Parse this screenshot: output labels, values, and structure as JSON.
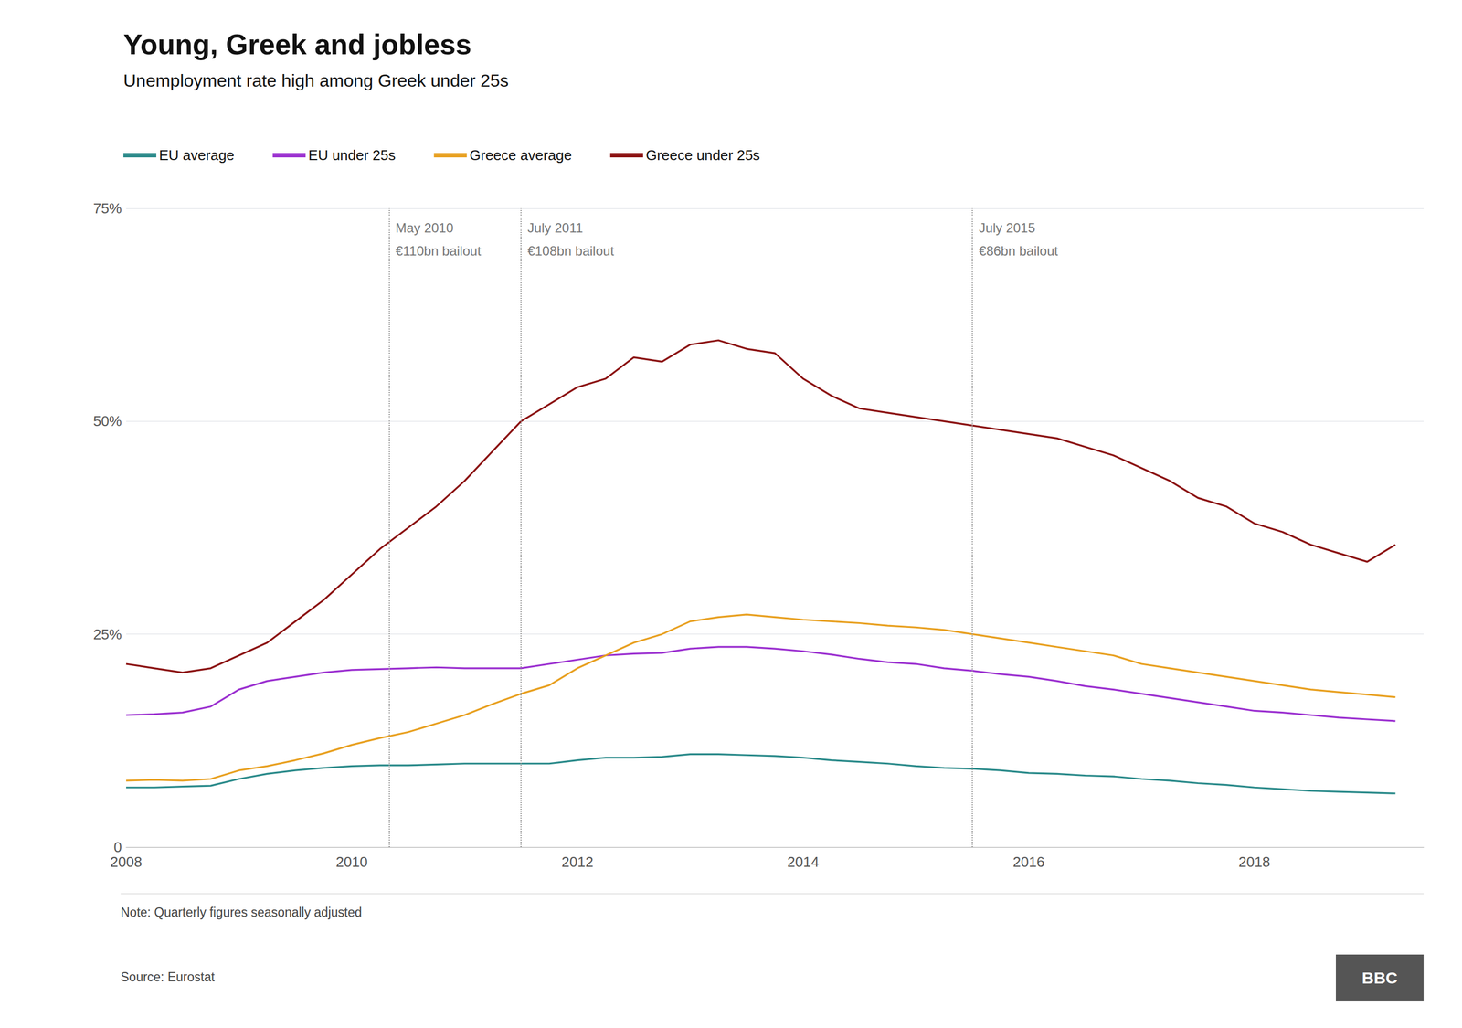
{
  "chart_data": {
    "type": "line",
    "title": "Young, Greek and jobless",
    "subtitle": "Unemployment rate high among Greek under 25s",
    "note": "Note: Quarterly figures seasonally adjusted",
    "source": "Source: Eurostat",
    "logo": "BBC",
    "x": [
      2008.0,
      2008.25,
      2008.5,
      2008.75,
      2009.0,
      2009.25,
      2009.5,
      2009.75,
      2010.0,
      2010.25,
      2010.5,
      2010.75,
      2011.0,
      2011.25,
      2011.5,
      2011.75,
      2012.0,
      2012.25,
      2012.5,
      2012.75,
      2013.0,
      2013.25,
      2013.5,
      2013.75,
      2014.0,
      2014.25,
      2014.5,
      2014.75,
      2015.0,
      2015.25,
      2015.5,
      2015.75,
      2016.0,
      2016.25,
      2016.5,
      2016.75,
      2017.0,
      2017.25,
      2017.5,
      2017.75,
      2018.0,
      2018.25,
      2018.5,
      2018.75,
      2019.0,
      2019.25
    ],
    "series": [
      {
        "name": "EU average",
        "color": "#2a8a8a",
        "values": [
          7.0,
          7.0,
          7.1,
          7.2,
          8.0,
          8.6,
          9.0,
          9.3,
          9.5,
          9.6,
          9.6,
          9.7,
          9.8,
          9.8,
          9.8,
          9.8,
          10.2,
          10.5,
          10.5,
          10.6,
          10.9,
          10.9,
          10.8,
          10.7,
          10.5,
          10.2,
          10.0,
          9.8,
          9.5,
          9.3,
          9.2,
          9.0,
          8.7,
          8.6,
          8.4,
          8.3,
          8.0,
          7.8,
          7.5,
          7.3,
          7.0,
          6.8,
          6.6,
          6.5,
          6.4,
          6.3
        ]
      },
      {
        "name": "EU under 25s",
        "color": "#9b30d0",
        "values": [
          15.5,
          15.6,
          15.8,
          16.5,
          18.5,
          19.5,
          20.0,
          20.5,
          20.8,
          20.9,
          21.0,
          21.1,
          21.0,
          21.0,
          21.0,
          21.5,
          22.0,
          22.5,
          22.7,
          22.8,
          23.3,
          23.5,
          23.5,
          23.3,
          23.0,
          22.6,
          22.1,
          21.7,
          21.5,
          21.0,
          20.7,
          20.3,
          20.0,
          19.5,
          18.9,
          18.5,
          18.0,
          17.5,
          17.0,
          16.5,
          16.0,
          15.8,
          15.5,
          15.2,
          15.0,
          14.8
        ]
      },
      {
        "name": "Greece average",
        "color": "#e8a020",
        "values": [
          7.8,
          7.9,
          7.8,
          8.0,
          9.0,
          9.5,
          10.2,
          11.0,
          12.0,
          12.8,
          13.5,
          14.5,
          15.5,
          16.8,
          18.0,
          19.0,
          21.0,
          22.5,
          24.0,
          25.0,
          26.5,
          27.0,
          27.3,
          27.0,
          26.7,
          26.5,
          26.3,
          26.0,
          25.8,
          25.5,
          25.0,
          24.5,
          24.0,
          23.5,
          23.0,
          22.5,
          21.5,
          21.0,
          20.5,
          20.0,
          19.5,
          19.0,
          18.5,
          18.2,
          17.9,
          17.6
        ]
      },
      {
        "name": "Greece under 25s",
        "color": "#8b1010",
        "values": [
          21.5,
          21.0,
          20.5,
          21.0,
          22.5,
          24.0,
          26.5,
          29.0,
          32.0,
          35.0,
          37.5,
          40.0,
          43.0,
          46.5,
          50.0,
          52.0,
          54.0,
          55.0,
          57.5,
          57.0,
          59.0,
          59.5,
          58.5,
          58.0,
          55.0,
          53.0,
          51.5,
          51.0,
          50.5,
          50.0,
          49.5,
          49.0,
          48.5,
          48.0,
          47.0,
          46.0,
          44.5,
          43.0,
          41.0,
          40.0,
          38.0,
          37.0,
          35.5,
          34.5,
          33.5,
          35.5
        ]
      }
    ],
    "annotations": [
      {
        "x": 2010.33,
        "text": [
          "May 2010",
          "€110bn bailout"
        ]
      },
      {
        "x": 2011.5,
        "text": [
          "July 2011",
          "€108bn bailout"
        ]
      },
      {
        "x": 2015.5,
        "text": [
          "July 2015",
          "€86bn bailout"
        ]
      }
    ],
    "xlim": [
      2008.0,
      2019.5
    ],
    "ylim": [
      0,
      75
    ],
    "xticks": [
      2008,
      2010,
      2012,
      2014,
      2016,
      2018
    ],
    "yticks": [
      0,
      {
        "value": 25,
        "label": "25%"
      },
      {
        "value": 50,
        "label": "50%"
      },
      {
        "value": 75,
        "label": "75%"
      }
    ],
    "grid": true,
    "legend": "top-left"
  }
}
